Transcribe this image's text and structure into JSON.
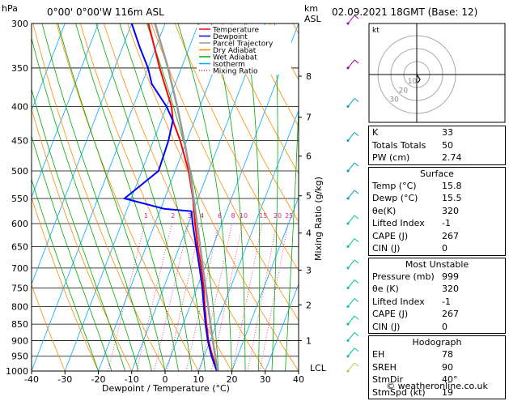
{
  "header": {
    "location": "0°00' 0°00'W 116m ASL",
    "datetime": "02.09.2021 18GMT (Base: 12)",
    "hpa_label": "hPa",
    "km_label": "km",
    "asl_label": "ASL"
  },
  "footer": {
    "credit": "© weatheronline.co.uk"
  },
  "panel": {
    "top": [
      {
        "label": "K",
        "value": "33"
      },
      {
        "label": "Totals Totals",
        "value": "50"
      },
      {
        "label": "PW (cm)",
        "value": "2.74"
      }
    ],
    "surface": {
      "title": "Surface",
      "rows": [
        {
          "label": "Temp (°C)",
          "value": "15.8"
        },
        {
          "label": "Dewp (°C)",
          "value": "15.5"
        },
        {
          "label": "θe(K)",
          "value": "320"
        },
        {
          "label": "Lifted Index",
          "value": "-1"
        },
        {
          "label": "CAPE (J)",
          "value": "267"
        },
        {
          "label": "CIN (J)",
          "value": "0"
        }
      ]
    },
    "most_unstable": {
      "title": "Most Unstable",
      "rows": [
        {
          "label": "Pressure (mb)",
          "value": "999"
        },
        {
          "label": "θe (K)",
          "value": "320"
        },
        {
          "label": "Lifted Index",
          "value": "-1"
        },
        {
          "label": "CAPE (J)",
          "value": "267"
        },
        {
          "label": "CIN (J)",
          "value": "0"
        }
      ]
    },
    "hodograph": {
      "title": "Hodograph",
      "rows": [
        {
          "label": "EH",
          "value": "78"
        },
        {
          "label": "SREH",
          "value": "90"
        },
        {
          "label": "StmDir",
          "value": "40°"
        },
        {
          "label": "StmSpd (kt)",
          "value": "19"
        }
      ]
    }
  },
  "chart_data": {
    "type": "line",
    "xlabel": "Dewpoint / Temperature (°C)",
    "ylabel": "Mixing Ratio (g/kg)",
    "xlim": [
      -40,
      40
    ],
    "ylim": [
      1000,
      300
    ],
    "y_scale": "log",
    "x_ticks": [
      -40,
      -30,
      -20,
      -10,
      0,
      10,
      20,
      30,
      40
    ],
    "pressure_ticks": [
      300,
      350,
      400,
      450,
      500,
      550,
      600,
      650,
      700,
      750,
      800,
      850,
      900,
      950,
      1000
    ],
    "km_ticks": [
      {
        "km": "1",
        "p": 900
      },
      {
        "km": "2",
        "p": 795
      },
      {
        "km": "3",
        "p": 705
      },
      {
        "km": "4",
        "p": 620
      },
      {
        "km": "5",
        "p": 545
      },
      {
        "km": "6",
        "p": 475
      },
      {
        "km": "7",
        "p": 415
      },
      {
        "km": "8",
        "p": 360
      }
    ],
    "lcl_label": "LCL",
    "lcl_p": 1000,
    "mixing_ratio_labels": [
      "1",
      "2",
      "3",
      "4",
      "6",
      "8",
      "10",
      "15",
      "20",
      "25"
    ],
    "mixing_ratio_p": 590,
    "legend": {
      "placement": "top-center",
      "entries": [
        {
          "name": "Temperature",
          "color": "#ff0000",
          "style": "solid"
        },
        {
          "name": "Dewpoint",
          "color": "#0000ff",
          "style": "solid"
        },
        {
          "name": "Parcel Trajectory",
          "color": "#999999",
          "style": "solid"
        },
        {
          "name": "Dry Adiabat",
          "color": "#ff8c00",
          "style": "solid"
        },
        {
          "name": "Wet Adiabat",
          "color": "#00aa00",
          "style": "solid"
        },
        {
          "name": "Isotherm",
          "color": "#00aaff",
          "style": "solid"
        },
        {
          "name": "Mixing Ratio",
          "color": "#e0218a",
          "style": "dotted"
        }
      ]
    },
    "series": [
      {
        "name": "Temperature",
        "color": "#ff0000",
        "points": [
          {
            "p": 1000,
            "t": 15.8
          },
          {
            "p": 950,
            "t": 12.5
          },
          {
            "p": 900,
            "t": 9.5
          },
          {
            "p": 850,
            "t": 7.0
          },
          {
            "p": 800,
            "t": 4.5
          },
          {
            "p": 750,
            "t": 2.0
          },
          {
            "p": 700,
            "t": -1.0
          },
          {
            "p": 650,
            "t": -4.5
          },
          {
            "p": 600,
            "t": -8.0
          },
          {
            "p": 550,
            "t": -11.5
          },
          {
            "p": 500,
            "t": -16.0
          },
          {
            "p": 450,
            "t": -22.0
          },
          {
            "p": 420,
            "t": -26.5
          },
          {
            "p": 400,
            "t": -28.5
          },
          {
            "p": 350,
            "t": -36.5
          },
          {
            "p": 300,
            "t": -45.0
          }
        ]
      },
      {
        "name": "Dewpoint",
        "color": "#0000ff",
        "points": [
          {
            "p": 1000,
            "t": 15.5
          },
          {
            "p": 950,
            "t": 12.2
          },
          {
            "p": 900,
            "t": 9.3
          },
          {
            "p": 850,
            "t": 6.7
          },
          {
            "p": 800,
            "t": 4.2
          },
          {
            "p": 750,
            "t": 1.6
          },
          {
            "p": 700,
            "t": -1.5
          },
          {
            "p": 650,
            "t": -5.0
          },
          {
            "p": 600,
            "t": -8.7
          },
          {
            "p": 575,
            "t": -10.5
          },
          {
            "p": 570,
            "t": -19.0
          },
          {
            "p": 550,
            "t": -32.0
          },
          {
            "p": 500,
            "t": -25.0
          },
          {
            "p": 450,
            "t": -25.5
          },
          {
            "p": 420,
            "t": -26.5
          },
          {
            "p": 400,
            "t": -30.0
          },
          {
            "p": 370,
            "t": -37.0
          },
          {
            "p": 350,
            "t": -40.0
          },
          {
            "p": 325,
            "t": -45.0
          },
          {
            "p": 300,
            "t": -50.0
          }
        ]
      },
      {
        "name": "Parcel Trajectory",
        "color": "#999999",
        "points": [
          {
            "p": 1000,
            "t": 15.8
          },
          {
            "p": 950,
            "t": 13.3
          },
          {
            "p": 900,
            "t": 10.8
          },
          {
            "p": 850,
            "t": 8.2
          },
          {
            "p": 800,
            "t": 5.5
          },
          {
            "p": 750,
            "t": 2.6
          },
          {
            "p": 700,
            "t": -0.5
          },
          {
            "p": 650,
            "t": -3.8
          },
          {
            "p": 600,
            "t": -7.4
          },
          {
            "p": 550,
            "t": -11.3
          },
          {
            "p": 500,
            "t": -15.6
          },
          {
            "p": 450,
            "t": -20.8
          },
          {
            "p": 400,
            "t": -26.8
          },
          {
            "p": 350,
            "t": -34.0
          },
          {
            "p": 300,
            "t": -43.0
          }
        ]
      }
    ],
    "wind_barbs": [
      {
        "p": 300,
        "color": "#a000a0"
      },
      {
        "p": 350,
        "color": "#a000a0"
      },
      {
        "p": 400,
        "color": "#00a0c0"
      },
      {
        "p": 450,
        "color": "#00a0c0"
      },
      {
        "p": 500,
        "color": "#00a0c0"
      },
      {
        "p": 550,
        "color": "#00a0c0"
      },
      {
        "p": 600,
        "color": "#00c0a0"
      },
      {
        "p": 650,
        "color": "#00c0a0"
      },
      {
        "p": 700,
        "color": "#00c0a0"
      },
      {
        "p": 750,
        "color": "#00c0a0"
      },
      {
        "p": 800,
        "color": "#00c0a0"
      },
      {
        "p": 850,
        "color": "#00c0a0"
      },
      {
        "p": 900,
        "color": "#00c0a0"
      },
      {
        "p": 950,
        "color": "#00c0a0"
      },
      {
        "p": 1000,
        "color": "#aacc44"
      }
    ],
    "hodograph": {
      "label": "kt",
      "ring_labels": [
        "10",
        "20",
        "30"
      ],
      "points": [
        [
          0,
          0
        ],
        [
          2,
          3
        ],
        [
          4,
          6
        ],
        [
          3,
          8
        ],
        [
          1,
          10
        ]
      ]
    }
  }
}
